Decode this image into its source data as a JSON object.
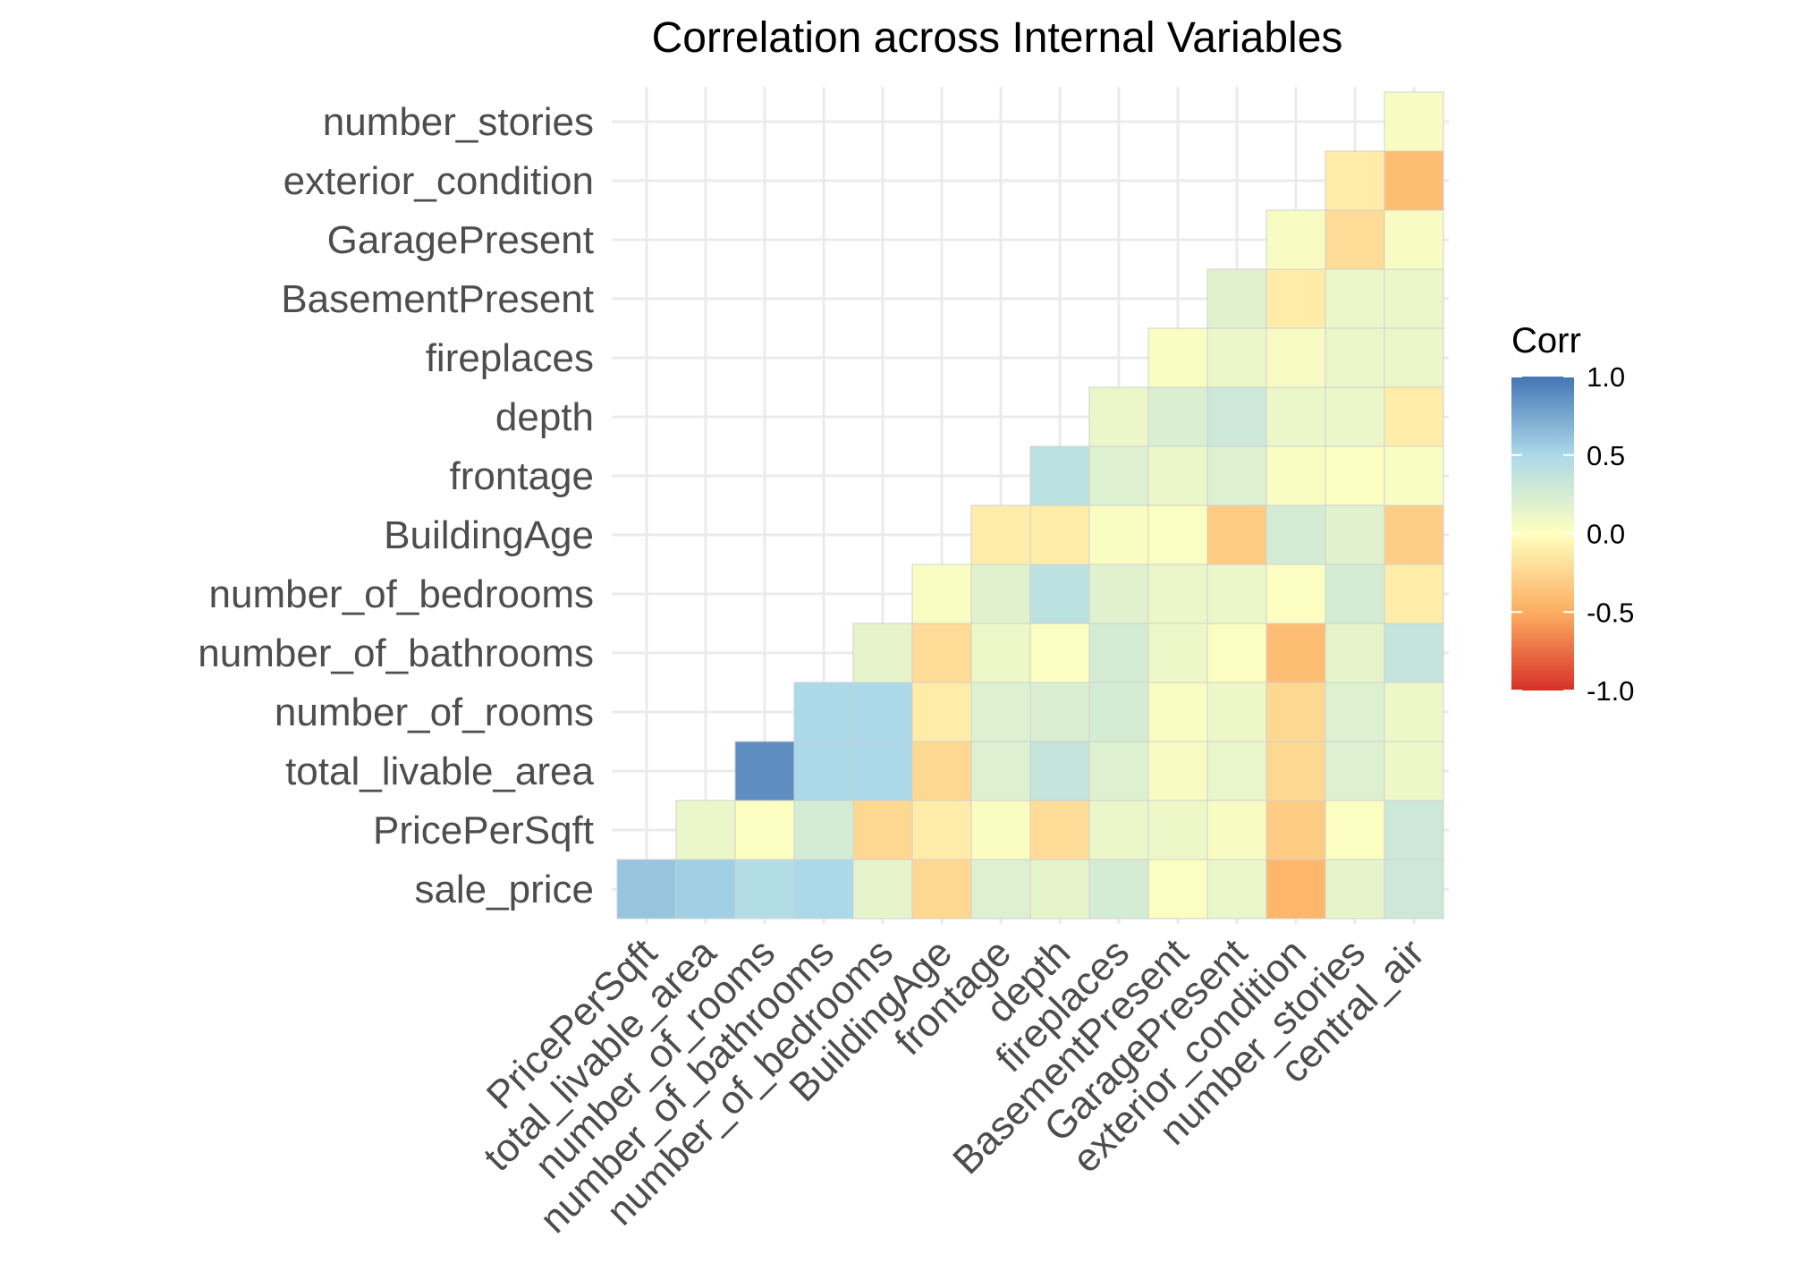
{
  "chart_data": {
    "type": "heatmap",
    "title": "Correlation across Internal Variables",
    "xlabel": "",
    "ylabel": "",
    "x_categories": [
      "PricePerSqft",
      "total_livable_area",
      "number_of_rooms",
      "number_of_bathrooms",
      "number_of_bedrooms",
      "BuildingAge",
      "frontage",
      "depth",
      "fireplaces",
      "BasementPresent",
      "GaragePresent",
      "exterior_condition",
      "number_stories",
      "central_air"
    ],
    "y_categories": [
      "sale_price",
      "PricePerSqft",
      "total_livable_area",
      "number_of_rooms",
      "number_of_bathrooms",
      "number_of_bedrooms",
      "BuildingAge",
      "frontage",
      "depth",
      "fireplaces",
      "BasementPresent",
      "GaragePresent",
      "exterior_condition",
      "number_stories"
    ],
    "values": [
      [
        0.6,
        0.55,
        0.45,
        0.5,
        0.15,
        -0.25,
        0.2,
        0.15,
        0.25,
        0.02,
        0.12,
        -0.45,
        0.15,
        0.3
      ],
      [
        null,
        0.12,
        0.02,
        0.25,
        -0.25,
        -0.12,
        0.03,
        -0.22,
        0.12,
        0.1,
        0.04,
        -0.32,
        0.02,
        0.3
      ],
      [
        null,
        null,
        0.88,
        0.5,
        0.5,
        -0.25,
        0.2,
        0.35,
        0.2,
        0.04,
        0.13,
        -0.25,
        0.2,
        0.1
      ],
      [
        null,
        null,
        null,
        0.5,
        0.5,
        -0.12,
        0.2,
        0.22,
        0.25,
        0.03,
        0.1,
        -0.25,
        0.2,
        0.1
      ],
      [
        null,
        null,
        null,
        null,
        0.15,
        -0.22,
        0.1,
        0.02,
        0.25,
        0.1,
        0.02,
        -0.4,
        0.15,
        0.35
      ],
      [
        null,
        null,
        null,
        null,
        null,
        0.03,
        0.18,
        0.4,
        0.18,
        0.12,
        0.12,
        0.02,
        0.25,
        -0.12
      ],
      [
        null,
        null,
        null,
        null,
        null,
        null,
        -0.12,
        -0.12,
        0.03,
        0.02,
        -0.32,
        0.25,
        0.18,
        -0.3
      ],
      [
        null,
        null,
        null,
        null,
        null,
        null,
        null,
        0.4,
        0.2,
        0.12,
        0.2,
        0.03,
        0.02,
        0.03
      ],
      [
        null,
        null,
        null,
        null,
        null,
        null,
        null,
        null,
        0.12,
        0.22,
        0.3,
        0.12,
        0.12,
        -0.12
      ],
      [
        null,
        null,
        null,
        null,
        null,
        null,
        null,
        null,
        null,
        0.03,
        0.12,
        0.05,
        0.12,
        0.12
      ],
      [
        null,
        null,
        null,
        null,
        null,
        null,
        null,
        null,
        null,
        null,
        0.18,
        -0.12,
        0.12,
        0.12
      ],
      [
        null,
        null,
        null,
        null,
        null,
        null,
        null,
        null,
        null,
        null,
        null,
        0.04,
        -0.22,
        0.04
      ],
      [
        null,
        null,
        null,
        null,
        null,
        null,
        null,
        null,
        null,
        null,
        null,
        null,
        -0.12,
        -0.4
      ],
      [
        null,
        null,
        null,
        null,
        null,
        null,
        null,
        null,
        null,
        null,
        null,
        null,
        null,
        0.04
      ]
    ],
    "color_scale": {
      "low": "#d73027",
      "mid_low": "#fdae61",
      "mid": "#ffffbf",
      "mid_high": "#abd9e9",
      "high": "#4575b4",
      "limits": [
        -1,
        1
      ]
    },
    "legend": {
      "title": "Corr",
      "position": "right",
      "labels": [
        "1.0",
        "0.5",
        "0.0",
        "-0.5",
        "-1.0"
      ]
    },
    "grid": true
  }
}
